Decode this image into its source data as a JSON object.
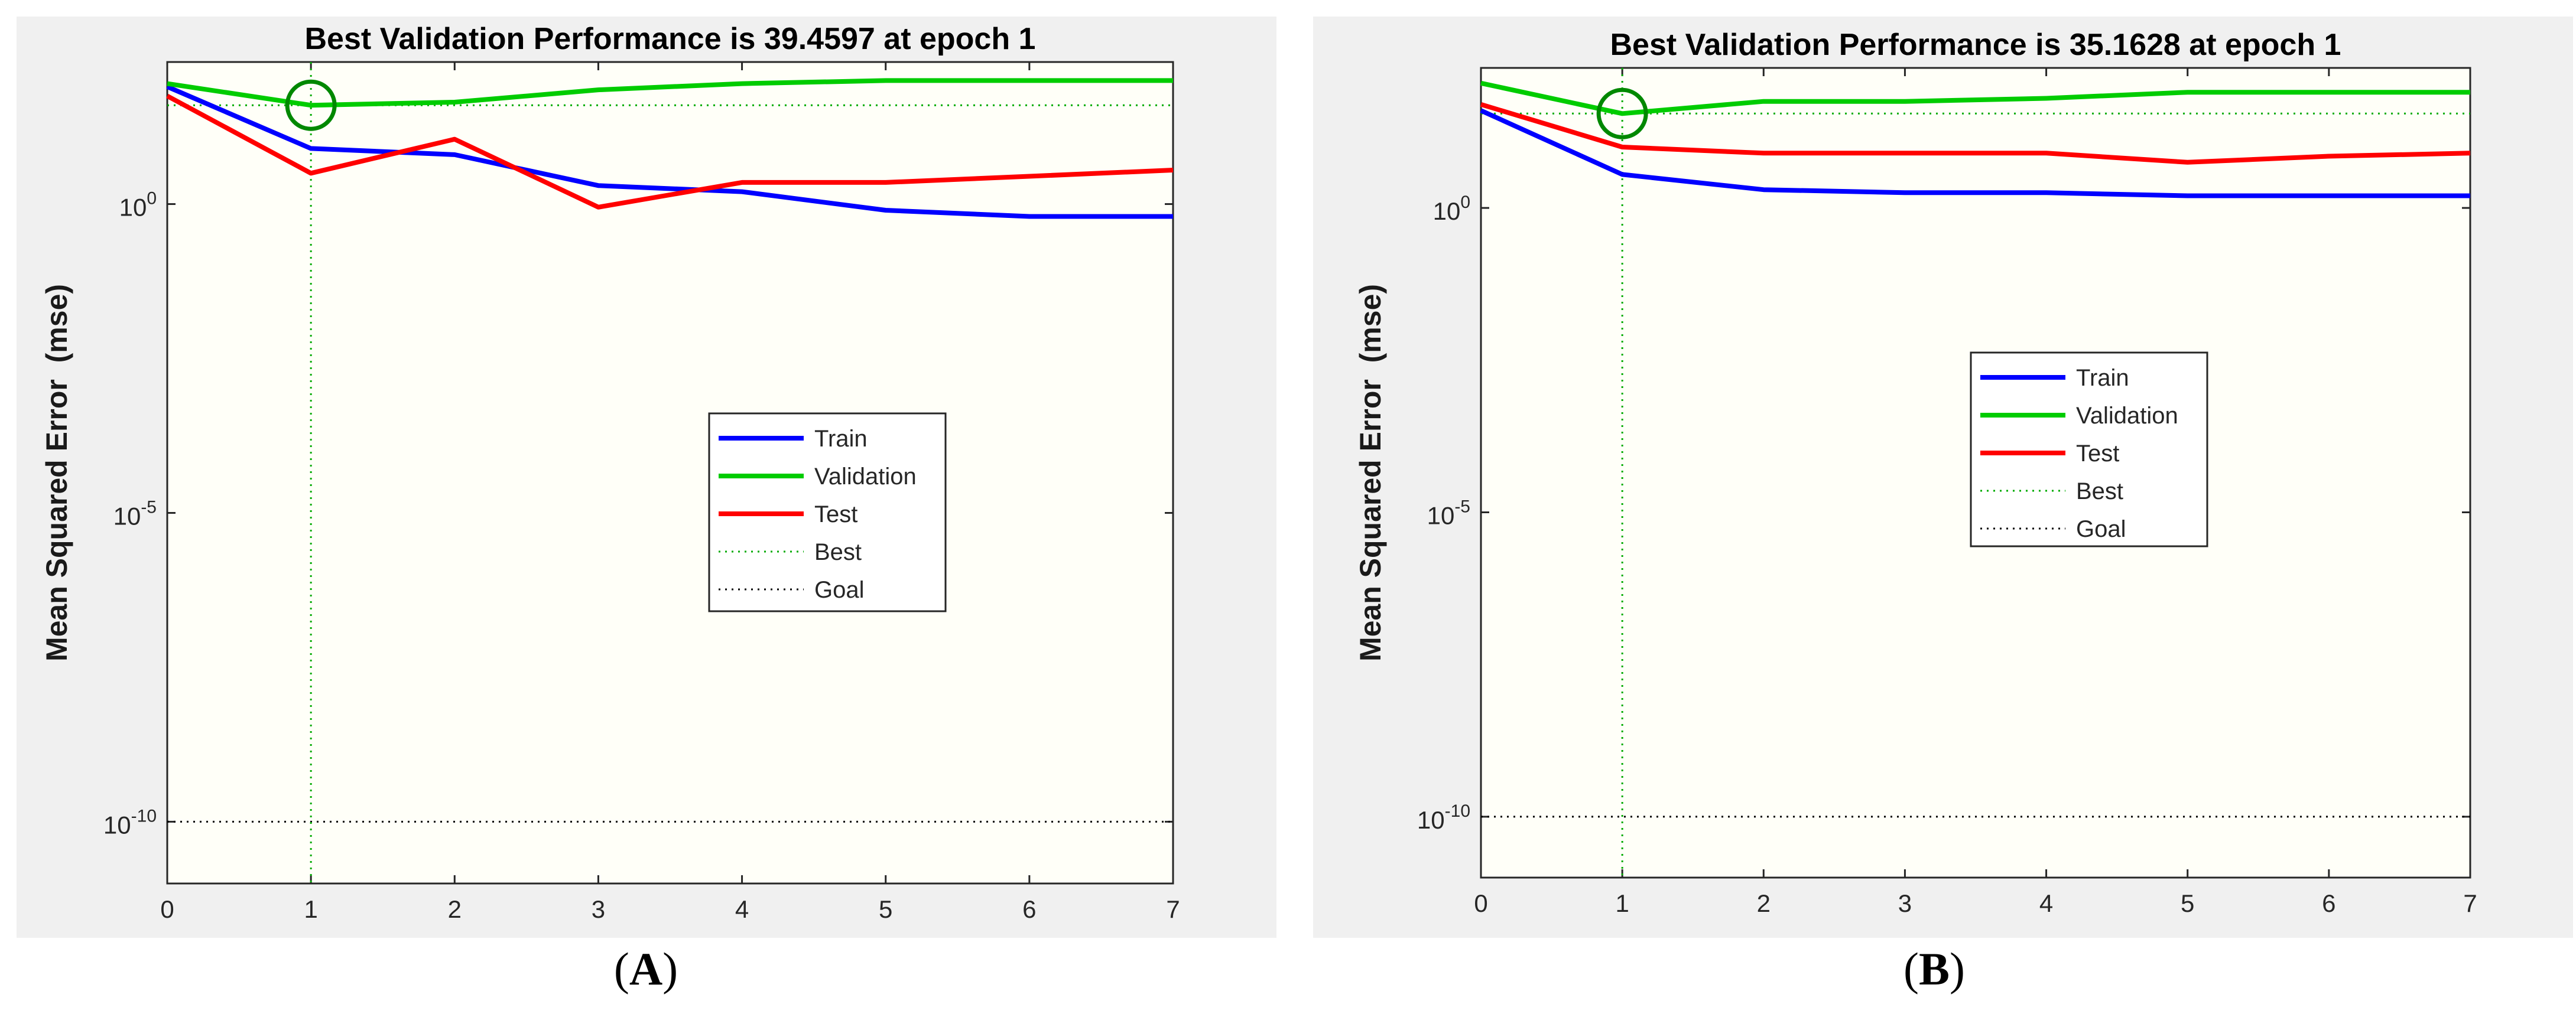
{
  "figure": {
    "caption_a": "A",
    "caption_b": "B"
  },
  "chart_data": [
    {
      "type": "line",
      "panel": "A",
      "title": "Best Validation Performance is 39.4597 at epoch 1",
      "xlabel": "",
      "ylabel": "Mean Squared Error  (mse)",
      "xlim": [
        0,
        7
      ],
      "ylim_log10": [
        -11,
        2.3
      ],
      "yscale": "log",
      "xticks": [
        0,
        1,
        2,
        3,
        4,
        5,
        6,
        7
      ],
      "yticks": [
        {
          "exp": 0,
          "label_base": "10",
          "label_exp": "0"
        },
        {
          "exp": -5,
          "label_base": "10",
          "label_exp": "-5"
        },
        {
          "exp": -10,
          "label_base": "10",
          "label_exp": "-10"
        }
      ],
      "x": [
        0,
        1,
        2,
        3,
        4,
        5,
        6,
        7
      ],
      "series": [
        {
          "name": "Train",
          "color": "#0000ff",
          "log10_values": [
            1.9,
            0.9,
            0.8,
            0.3,
            0.2,
            -0.1,
            -0.2,
            -0.2
          ]
        },
        {
          "name": "Validation",
          "color": "#00cc00",
          "log10_values": [
            1.95,
            1.6,
            1.65,
            1.85,
            1.95,
            2.0,
            2.0,
            2.0
          ]
        },
        {
          "name": "Test",
          "color": "#ff0000",
          "log10_values": [
            1.75,
            0.5,
            1.05,
            -0.05,
            0.35,
            0.35,
            0.45,
            0.55
          ]
        }
      ],
      "best": {
        "label": "Best",
        "epoch": 1,
        "log10_value": 1.6,
        "color": "#00aa00"
      },
      "goal": {
        "label": "Goal",
        "log10_value": -10,
        "color": "#000000"
      },
      "legend": {
        "placement": "center-right",
        "entries": [
          "Train",
          "Validation",
          "Test",
          "Best",
          "Goal"
        ]
      }
    },
    {
      "type": "line",
      "panel": "B",
      "title": "Best Validation Performance is 35.1628 at epoch 1",
      "xlabel": "",
      "ylabel": "Mean Squared Error  (mse)",
      "xlim": [
        0,
        7
      ],
      "ylim_log10": [
        -11,
        2.3
      ],
      "yscale": "log",
      "xticks": [
        0,
        1,
        2,
        3,
        4,
        5,
        6,
        7
      ],
      "yticks": [
        {
          "exp": 0,
          "label_base": "10",
          "label_exp": "0"
        },
        {
          "exp": -5,
          "label_base": "10",
          "label_exp": "-5"
        },
        {
          "exp": -10,
          "label_base": "10",
          "label_exp": "-10"
        }
      ],
      "x": [
        0,
        1,
        2,
        3,
        4,
        5,
        6,
        7
      ],
      "series": [
        {
          "name": "Train",
          "color": "#0000ff",
          "log10_values": [
            1.6,
            0.55,
            0.3,
            0.25,
            0.25,
            0.2,
            0.2,
            0.2
          ]
        },
        {
          "name": "Validation",
          "color": "#00cc00",
          "log10_values": [
            2.05,
            1.55,
            1.75,
            1.75,
            1.8,
            1.9,
            1.9,
            1.9
          ]
        },
        {
          "name": "Test",
          "color": "#ff0000",
          "log10_values": [
            1.7,
            1.0,
            0.9,
            0.9,
            0.9,
            0.75,
            0.85,
            0.9
          ]
        }
      ],
      "best": {
        "label": "Best",
        "epoch": 1,
        "log10_value": 1.55,
        "color": "#00aa00"
      },
      "goal": {
        "label": "Goal",
        "log10_value": -10,
        "color": "#000000"
      },
      "legend": {
        "placement": "center-right",
        "entries": [
          "Train",
          "Validation",
          "Test",
          "Best",
          "Goal"
        ]
      }
    }
  ]
}
